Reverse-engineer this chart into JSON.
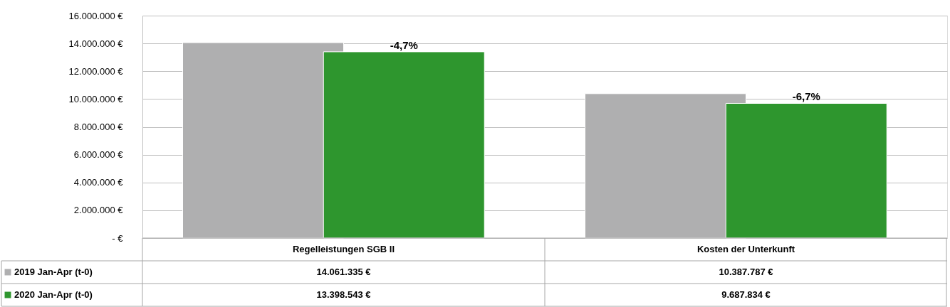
{
  "chart_data": {
    "type": "bar",
    "categories": [
      "Regelleistungen SGB II",
      "Kosten der Unterkunft"
    ],
    "series": [
      {
        "name": "2019 Jan-Apr (t-0)",
        "color": "#afafb0",
        "values": [
          14061335,
          10387787
        ],
        "value_labels": [
          "14.061.335 €",
          "10.387.787 €"
        ]
      },
      {
        "name": "2020 Jan-Apr (t-0)",
        "color": "#2e962e",
        "values": [
          13398543,
          9687834
        ],
        "value_labels": [
          "13.398.543 €",
          "9.687.834 €"
        ]
      }
    ],
    "ylim": [
      0,
      16000000
    ],
    "yticks": [
      {
        "value": 0,
        "label": "- €"
      },
      {
        "value": 2000000,
        "label": "2.000.000 €"
      },
      {
        "value": 4000000,
        "label": "4.000.000 €"
      },
      {
        "value": 6000000,
        "label": "6.000.000 €"
      },
      {
        "value": 8000000,
        "label": "8.000.000 €"
      },
      {
        "value": 10000000,
        "label": "10.000.000 €"
      },
      {
        "value": 12000000,
        "label": "12.000.000 €"
      },
      {
        "value": 14000000,
        "label": "14.000.000 €"
      },
      {
        "value": 16000000,
        "label": "16.000.000 €"
      }
    ],
    "grid": "y",
    "legend": "bottom",
    "annotations": [
      "-4,7%",
      "-6,7%"
    ]
  }
}
